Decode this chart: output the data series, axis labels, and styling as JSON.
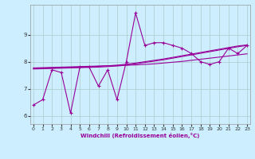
{
  "xlabel": "Windchill (Refroidissement éolien,°C)",
  "bg_color": "#cceeff",
  "grid_color": "#aacccc",
  "line_color": "#990099",
  "x_ticks": [
    0,
    1,
    2,
    3,
    4,
    5,
    6,
    7,
    8,
    9,
    10,
    11,
    12,
    13,
    14,
    15,
    16,
    17,
    18,
    19,
    20,
    21,
    22,
    23
  ],
  "y_ticks": [
    6,
    7,
    8,
    9
  ],
  "ylim": [
    5.7,
    10.1
  ],
  "xlim": [
    -0.3,
    23.3
  ],
  "series": [
    [
      6.4,
      6.6,
      7.7,
      7.6,
      6.1,
      7.8,
      7.8,
      7.1,
      7.7,
      6.6,
      8.0,
      9.8,
      8.6,
      8.7,
      8.7,
      8.6,
      8.5,
      8.3,
      8.0,
      7.9,
      8.0,
      8.5,
      8.3,
      8.6
    ],
    [
      7.77,
      7.78,
      7.79,
      7.8,
      7.81,
      7.82,
      7.83,
      7.84,
      7.85,
      7.86,
      7.87,
      7.88,
      7.9,
      7.92,
      7.95,
      7.98,
      8.01,
      8.05,
      8.09,
      8.13,
      8.17,
      8.21,
      8.25,
      8.29
    ],
    [
      7.75,
      7.76,
      7.77,
      7.78,
      7.79,
      7.8,
      7.81,
      7.83,
      7.85,
      7.87,
      7.91,
      7.95,
      8.0,
      8.05,
      8.1,
      8.16,
      8.22,
      8.28,
      8.34,
      8.4,
      8.46,
      8.52,
      8.58,
      8.62
    ],
    [
      7.73,
      7.74,
      7.75,
      7.76,
      7.77,
      7.78,
      7.79,
      7.8,
      7.82,
      7.84,
      7.87,
      7.92,
      7.97,
      8.02,
      8.07,
      8.13,
      8.19,
      8.25,
      8.31,
      8.37,
      8.43,
      8.49,
      8.55,
      8.6
    ]
  ],
  "marker_size": 3.5,
  "linewidth": 0.8
}
